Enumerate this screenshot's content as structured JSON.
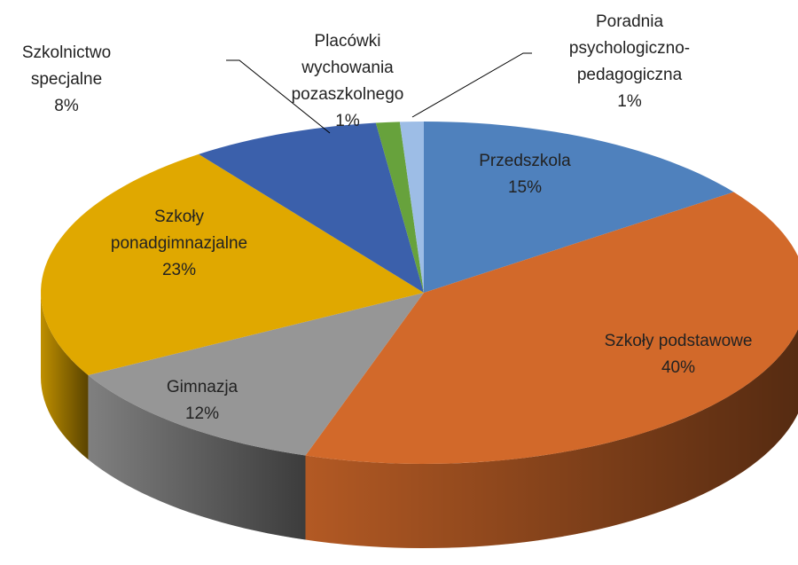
{
  "chart_data": {
    "type": "pie3d",
    "categories": [
      "Przedszkola",
      "Szkoły podstawowe",
      "Gimnazja",
      "Szkoły ponadgimnazjalne",
      "Szkolnictwo specjalne",
      "Placówki wychowania pozaszkolnego",
      "Poradnia psychologiczno-pedagogiczna"
    ],
    "values": [
      15,
      40,
      12,
      23,
      8,
      1,
      1
    ],
    "value_labels": [
      "15%",
      "40%",
      "12%",
      "23%",
      "8%",
      "1%",
      "1%"
    ],
    "colors": [
      "#4f81bd",
      "#d2692a",
      "#969696",
      "#e0a800",
      "#3b60ab",
      "#67a23c",
      "#9dbde6"
    ]
  }
}
